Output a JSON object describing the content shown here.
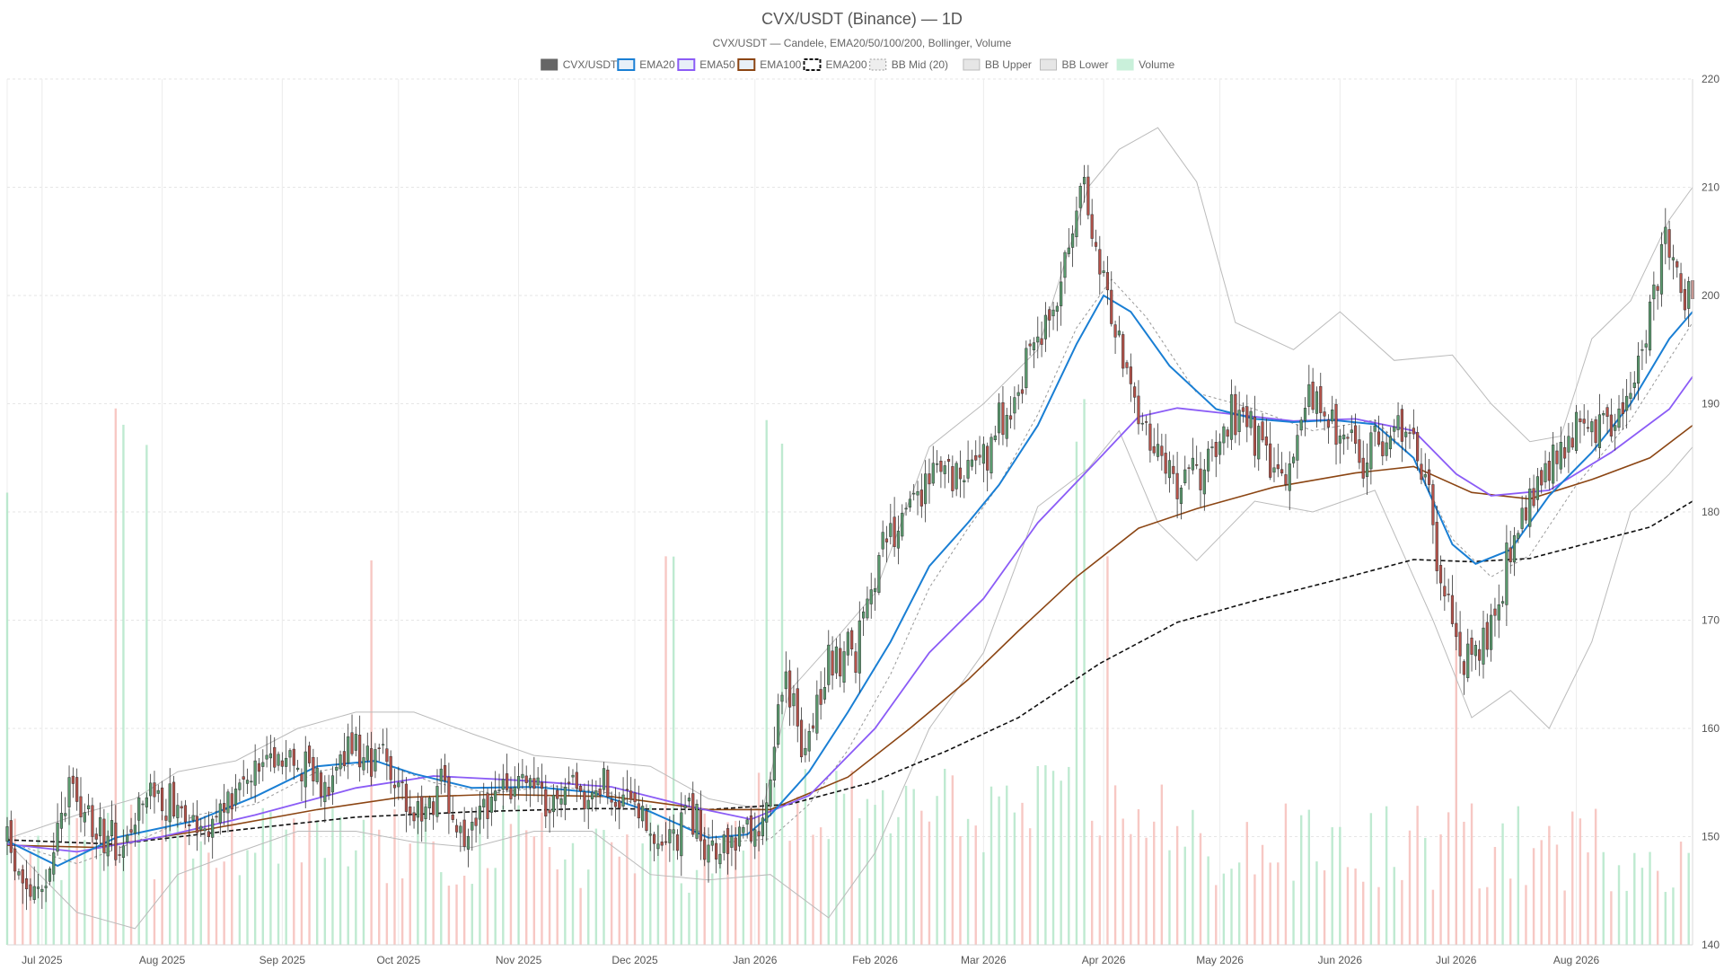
{
  "chart_data": {
    "type": "candlestick",
    "title": "CVX/USDT (Binance) — 1D",
    "subtitle": "CVX/USDT — Candele, EMA20/50/100/200, Bollinger, Volume",
    "ylim": [
      140,
      220
    ],
    "y_ticks": [
      140,
      150,
      160,
      170,
      180,
      190,
      200,
      210,
      220
    ],
    "grid": true,
    "legend_position": "top-center",
    "x_range": [
      "2025-06-22",
      "2026-08-31"
    ],
    "x_ticks": [
      {
        "date": "2025-07-01",
        "label": "Jul 2025"
      },
      {
        "date": "2025-08-01",
        "label": "Aug 2025"
      },
      {
        "date": "2025-09-01",
        "label": "Sep 2025"
      },
      {
        "date": "2025-10-01",
        "label": "Oct 2025"
      },
      {
        "date": "2025-11-01",
        "label": "Nov 2025"
      },
      {
        "date": "2025-12-01",
        "label": "Dec 2025"
      },
      {
        "date": "2026-01-01",
        "label": "Jan 2026"
      },
      {
        "date": "2026-02-01",
        "label": "Feb 2026"
      },
      {
        "date": "2026-03-01",
        "label": "Mar 2026"
      },
      {
        "date": "2026-04-01",
        "label": "Apr 2026"
      },
      {
        "date": "2026-05-01",
        "label": "May 2026"
      },
      {
        "date": "2026-06-01",
        "label": "Jun 2026"
      },
      {
        "date": "2026-07-01",
        "label": "Jul 2026"
      },
      {
        "date": "2026-08-01",
        "label": "Aug 2026"
      }
    ],
    "legend": [
      {
        "name": "CVX/USDT",
        "swatch": "solid",
        "color": "#666666"
      },
      {
        "name": "EMA20",
        "swatch": "box",
        "color": "#1a7fd4"
      },
      {
        "name": "EMA50",
        "swatch": "box",
        "color": "#8b5cf6"
      },
      {
        "name": "EMA100",
        "swatch": "box",
        "color": "#8b4513"
      },
      {
        "name": "EMA200",
        "swatch": "dashed",
        "color": "#111111"
      },
      {
        "name": "BB Mid (20)",
        "swatch": "dotted",
        "color": "#999999"
      },
      {
        "name": "BB Upper",
        "swatch": "gray",
        "color": "#bbbbbb"
      },
      {
        "name": "BB Lower",
        "swatch": "gray",
        "color": "#bbbbbb"
      },
      {
        "name": "Volume",
        "swatch": "mint",
        "color": "#8fd9b0"
      }
    ],
    "colors": {
      "up": "#5a9a6e",
      "down": "#b5524a",
      "wick": "#333333",
      "ema20": "#1a7fd4",
      "ema50": "#8b5cf6",
      "ema100": "#8b4513",
      "ema200": "#111111",
      "bb_mid": "#999999",
      "bb_band": "#bbbbbb",
      "volume_up": "#a9e3c2",
      "volume_down": "#f4b6b0"
    },
    "close_path": [
      [
        "2025-06-22",
        149.5
      ],
      [
        "2025-06-27",
        144.5
      ],
      [
        "2025-07-02",
        145.0
      ],
      [
        "2025-07-08",
        154.5
      ],
      [
        "2025-07-15",
        150.5
      ],
      [
        "2025-07-22",
        148.5
      ],
      [
        "2025-07-29",
        154.0
      ],
      [
        "2025-08-05",
        153.5
      ],
      [
        "2025-08-12",
        150.5
      ],
      [
        "2025-08-20",
        154.0
      ],
      [
        "2025-08-28",
        158.0
      ],
      [
        "2025-09-05",
        157.0
      ],
      [
        "2025-09-12",
        155.5
      ],
      [
        "2025-09-20",
        158.5
      ],
      [
        "2025-09-28",
        156.5
      ],
      [
        "2025-10-05",
        152.5
      ],
      [
        "2025-10-12",
        154.0
      ],
      [
        "2025-10-18",
        149.5
      ],
      [
        "2025-10-26",
        153.5
      ],
      [
        "2025-11-02",
        155.5
      ],
      [
        "2025-11-10",
        153.5
      ],
      [
        "2025-11-18",
        154.0
      ],
      [
        "2025-11-25",
        154.5
      ],
      [
        "2025-12-02",
        151.0
      ],
      [
        "2025-12-08",
        149.5
      ],
      [
        "2025-12-15",
        152.0
      ],
      [
        "2025-12-22",
        148.0
      ],
      [
        "2025-12-29",
        150.5
      ],
      [
        "2026-01-03",
        151.5
      ],
      [
        "2026-01-08",
        164.5
      ],
      [
        "2026-01-14",
        158.0
      ],
      [
        "2026-01-20",
        166.0
      ],
      [
        "2026-01-27",
        167.5
      ],
      [
        "2026-02-03",
        176.0
      ],
      [
        "2026-02-10",
        181.0
      ],
      [
        "2026-02-16",
        184.0
      ],
      [
        "2026-02-22",
        183.5
      ],
      [
        "2026-03-01",
        184.5
      ],
      [
        "2026-03-07",
        189.5
      ],
      [
        "2026-03-14",
        196.0
      ],
      [
        "2026-03-20",
        198.5
      ],
      [
        "2026-03-26",
        210.5
      ],
      [
        "2026-04-02",
        199.5
      ],
      [
        "2026-04-08",
        191.5
      ],
      [
        "2026-04-14",
        186.0
      ],
      [
        "2026-04-20",
        182.5
      ],
      [
        "2026-04-27",
        184.0
      ],
      [
        "2026-05-04",
        189.0
      ],
      [
        "2026-05-11",
        187.0
      ],
      [
        "2026-05-17",
        182.5
      ],
      [
        "2026-05-24",
        190.5
      ],
      [
        "2026-05-31",
        188.0
      ],
      [
        "2026-06-07",
        184.0
      ],
      [
        "2026-06-14",
        188.5
      ],
      [
        "2026-06-21",
        187.0
      ],
      [
        "2026-06-27",
        174.0
      ],
      [
        "2026-07-03",
        166.5
      ],
      [
        "2026-07-08",
        167.5
      ],
      [
        "2026-07-14",
        175.0
      ],
      [
        "2026-07-21",
        182.0
      ],
      [
        "2026-07-28",
        186.0
      ],
      [
        "2026-08-04",
        189.0
      ],
      [
        "2026-08-11",
        187.5
      ],
      [
        "2026-08-18",
        195.5
      ],
      [
        "2026-08-24",
        205.5
      ],
      [
        "2026-08-29",
        200.5
      ],
      [
        "2026-08-31",
        201.5
      ]
    ],
    "ema20": [
      [
        "2025-06-22",
        149.6
      ],
      [
        "2025-07-05",
        147.3
      ],
      [
        "2025-07-20",
        149.9
      ],
      [
        "2025-08-10",
        151.5
      ],
      [
        "2025-08-25",
        153.7
      ],
      [
        "2025-09-10",
        156.5
      ],
      [
        "2025-09-25",
        157.0
      ],
      [
        "2025-10-05",
        155.8
      ],
      [
        "2025-10-20",
        154.5
      ],
      [
        "2025-11-05",
        154.6
      ],
      [
        "2025-11-20",
        154.1
      ],
      [
        "2025-12-05",
        152.3
      ],
      [
        "2025-12-20",
        149.9
      ],
      [
        "2025-12-30",
        150.2
      ],
      [
        "2026-01-05",
        152.0
      ],
      [
        "2026-01-15",
        156.0
      ],
      [
        "2026-01-25",
        161.5
      ],
      [
        "2026-02-05",
        168.0
      ],
      [
        "2026-02-15",
        175.0
      ],
      [
        "2026-02-25",
        179.0
      ],
      [
        "2026-03-05",
        182.5
      ],
      [
        "2026-03-15",
        188.0
      ],
      [
        "2026-03-25",
        195.5
      ],
      [
        "2026-04-01",
        200.0
      ],
      [
        "2026-04-08",
        198.5
      ],
      [
        "2026-04-18",
        193.5
      ],
      [
        "2026-04-30",
        189.5
      ],
      [
        "2026-05-10",
        188.6
      ],
      [
        "2026-05-20",
        188.3
      ],
      [
        "2026-05-30",
        188.5
      ],
      [
        "2026-06-10",
        188.1
      ],
      [
        "2026-06-20",
        185.0
      ],
      [
        "2026-06-30",
        177.0
      ],
      [
        "2026-07-06",
        175.2
      ],
      [
        "2026-07-15",
        176.5
      ],
      [
        "2026-07-25",
        181.5
      ],
      [
        "2026-08-05",
        185.5
      ],
      [
        "2026-08-15",
        190.0
      ],
      [
        "2026-08-25",
        196.0
      ],
      [
        "2026-08-31",
        198.5
      ]
    ],
    "ema50": [
      [
        "2025-06-22",
        149.3
      ],
      [
        "2025-07-10",
        148.6
      ],
      [
        "2025-08-01",
        150.0
      ],
      [
        "2025-08-25",
        152.0
      ],
      [
        "2025-09-20",
        154.5
      ],
      [
        "2025-10-10",
        155.6
      ],
      [
        "2025-11-01",
        155.2
      ],
      [
        "2025-11-25",
        154.6
      ],
      [
        "2025-12-15",
        152.8
      ],
      [
        "2025-12-31",
        151.6
      ],
      [
        "2026-01-15",
        153.8
      ],
      [
        "2026-02-01",
        160.0
      ],
      [
        "2026-02-15",
        167.0
      ],
      [
        "2026-03-01",
        172.0
      ],
      [
        "2026-03-15",
        179.0
      ],
      [
        "2026-03-31",
        185.0
      ],
      [
        "2026-04-10",
        188.8
      ],
      [
        "2026-04-20",
        189.6
      ],
      [
        "2026-05-05",
        189.0
      ],
      [
        "2026-05-20",
        188.4
      ],
      [
        "2026-06-05",
        188.6
      ],
      [
        "2026-06-20",
        187.5
      ],
      [
        "2026-07-01",
        183.5
      ],
      [
        "2026-07-10",
        181.5
      ],
      [
        "2026-07-25",
        182.0
      ],
      [
        "2026-08-10",
        185.5
      ],
      [
        "2026-08-25",
        189.5
      ],
      [
        "2026-08-31",
        192.5
      ]
    ],
    "ema100": [
      [
        "2025-06-22",
        149.2
      ],
      [
        "2025-07-15",
        149.0
      ],
      [
        "2025-08-10",
        150.5
      ],
      [
        "2025-09-10",
        152.5
      ],
      [
        "2025-10-01",
        153.6
      ],
      [
        "2025-10-25",
        153.9
      ],
      [
        "2025-11-25",
        153.7
      ],
      [
        "2025-12-20",
        152.5
      ],
      [
        "2026-01-05",
        152.5
      ],
      [
        "2026-01-25",
        155.5
      ],
      [
        "2026-02-10",
        160.0
      ],
      [
        "2026-02-25",
        164.5
      ],
      [
        "2026-03-10",
        169.0
      ],
      [
        "2026-03-25",
        174.0
      ],
      [
        "2026-04-10",
        178.5
      ],
      [
        "2026-04-25",
        180.3
      ],
      [
        "2026-05-15",
        182.3
      ],
      [
        "2026-06-05",
        183.6
      ],
      [
        "2026-06-20",
        184.2
      ],
      [
        "2026-07-05",
        181.8
      ],
      [
        "2026-07-20",
        181.2
      ],
      [
        "2026-08-05",
        183.0
      ],
      [
        "2026-08-20",
        185.0
      ],
      [
        "2026-08-31",
        188.0
      ]
    ],
    "ema200": [
      [
        "2025-06-22",
        149.7
      ],
      [
        "2025-07-20",
        149.3
      ],
      [
        "2025-08-20",
        150.6
      ],
      [
        "2025-09-20",
        151.8
      ],
      [
        "2025-10-20",
        152.3
      ],
      [
        "2025-11-20",
        152.6
      ],
      [
        "2025-12-20",
        152.5
      ],
      [
        "2026-01-10",
        153.0
      ],
      [
        "2026-01-31",
        155.0
      ],
      [
        "2026-02-20",
        158.0
      ],
      [
        "2026-03-10",
        161.0
      ],
      [
        "2026-03-31",
        166.0
      ],
      [
        "2026-04-20",
        169.8
      ],
      [
        "2026-05-10",
        171.8
      ],
      [
        "2026-06-01",
        173.8
      ],
      [
        "2026-06-20",
        175.6
      ],
      [
        "2026-07-05",
        175.4
      ],
      [
        "2026-07-20",
        175.7
      ],
      [
        "2026-08-05",
        177.2
      ],
      [
        "2026-08-20",
        178.6
      ],
      [
        "2026-08-31",
        181.0
      ]
    ],
    "bb_mid": [
      [
        "2025-06-22",
        149.5
      ],
      [
        "2025-07-10",
        147.5
      ],
      [
        "2025-07-25",
        149.5
      ],
      [
        "2025-08-10",
        152.0
      ],
      [
        "2025-08-25",
        153.0
      ],
      [
        "2025-09-10",
        156.0
      ],
      [
        "2025-09-25",
        157.0
      ],
      [
        "2025-10-10",
        155.0
      ],
      [
        "2025-10-25",
        154.0
      ],
      [
        "2025-11-10",
        154.7
      ],
      [
        "2025-11-25",
        154.0
      ],
      [
        "2025-12-10",
        151.5
      ],
      [
        "2025-12-25",
        149.5
      ],
      [
        "2026-01-05",
        149.8
      ],
      [
        "2026-01-15",
        153.0
      ],
      [
        "2026-01-25",
        158.0
      ],
      [
        "2026-02-05",
        165.0
      ],
      [
        "2026-02-15",
        173.0
      ],
      [
        "2026-02-25",
        178.5
      ],
      [
        "2026-03-05",
        182.5
      ],
      [
        "2026-03-15",
        189.0
      ],
      [
        "2026-03-25",
        197.0
      ],
      [
        "2026-04-03",
        201.5
      ],
      [
        "2026-04-12",
        198.0
      ],
      [
        "2026-04-25",
        191.0
      ],
      [
        "2026-05-10",
        189.5
      ],
      [
        "2026-05-25",
        187.5
      ],
      [
        "2026-06-10",
        188.5
      ],
      [
        "2026-06-20",
        185.0
      ],
      [
        "2026-06-30",
        177.5
      ],
      [
        "2026-07-10",
        174.0
      ],
      [
        "2026-07-20",
        176.0
      ],
      [
        "2026-08-01",
        182.5
      ],
      [
        "2026-08-15",
        188.5
      ],
      [
        "2026-08-31",
        197.5
      ]
    ],
    "bb_upper": [
      [
        "2025-06-22",
        149.8
      ],
      [
        "2025-07-10",
        152.0
      ],
      [
        "2025-07-25",
        153.5
      ],
      [
        "2025-08-05",
        156.0
      ],
      [
        "2025-08-20",
        157.0
      ],
      [
        "2025-09-05",
        160.0
      ],
      [
        "2025-09-20",
        161.5
      ],
      [
        "2025-10-05",
        161.5
      ],
      [
        "2025-10-20",
        159.5
      ],
      [
        "2025-11-05",
        157.5
      ],
      [
        "2025-11-20",
        157.0
      ],
      [
        "2025-12-05",
        156.5
      ],
      [
        "2025-12-20",
        153.5
      ],
      [
        "2026-01-03",
        152.5
      ],
      [
        "2026-01-10",
        163.5
      ],
      [
        "2026-01-20",
        167.5
      ],
      [
        "2026-02-01",
        172.5
      ],
      [
        "2026-02-15",
        186.0
      ],
      [
        "2026-03-01",
        190.0
      ],
      [
        "2026-03-15",
        195.0
      ],
      [
        "2026-03-28",
        210.0
      ],
      [
        "2026-04-05",
        213.5
      ],
      [
        "2026-04-15",
        215.5
      ],
      [
        "2026-04-25",
        210.5
      ],
      [
        "2026-05-05",
        197.5
      ],
      [
        "2026-05-20",
        195.0
      ],
      [
        "2026-06-01",
        198.5
      ],
      [
        "2026-06-15",
        194.0
      ],
      [
        "2026-06-30",
        194.5
      ],
      [
        "2026-07-10",
        190.0
      ],
      [
        "2026-07-20",
        186.5
      ],
      [
        "2026-07-28",
        187.0
      ],
      [
        "2026-08-05",
        196.0
      ],
      [
        "2026-08-15",
        199.5
      ],
      [
        "2026-08-25",
        207.0
      ],
      [
        "2026-08-31",
        210.0
      ]
    ],
    "bb_lower": [
      [
        "2025-06-22",
        149.5
      ],
      [
        "2025-07-10",
        143.0
      ],
      [
        "2025-07-25",
        141.5
      ],
      [
        "2025-08-05",
        146.5
      ],
      [
        "2025-08-20",
        148.5
      ],
      [
        "2025-09-05",
        150.5
      ],
      [
        "2025-09-20",
        150.5
      ],
      [
        "2025-10-05",
        149.5
      ],
      [
        "2025-10-20",
        149.0
      ],
      [
        "2025-11-05",
        150.5
      ],
      [
        "2025-11-20",
        150.5
      ],
      [
        "2025-12-05",
        146.5
      ],
      [
        "2025-12-20",
        146.0
      ],
      [
        "2026-01-05",
        146.5
      ],
      [
        "2026-01-20",
        142.5
      ],
      [
        "2026-02-01",
        148.5
      ],
      [
        "2026-02-15",
        160.0
      ],
      [
        "2026-03-01",
        167.0
      ],
      [
        "2026-03-15",
        180.5
      ],
      [
        "2026-03-28",
        184.0
      ],
      [
        "2026-04-05",
        187.5
      ],
      [
        "2026-04-15",
        179.0
      ],
      [
        "2026-04-25",
        175.5
      ],
      [
        "2026-05-10",
        181.0
      ],
      [
        "2026-05-25",
        180.0
      ],
      [
        "2026-06-10",
        182.0
      ],
      [
        "2026-06-25",
        170.0
      ],
      [
        "2026-07-05",
        161.0
      ],
      [
        "2026-07-15",
        163.5
      ],
      [
        "2026-07-25",
        160.0
      ],
      [
        "2026-08-05",
        168.0
      ],
      [
        "2026-08-15",
        180.0
      ],
      [
        "2026-08-25",
        183.5
      ],
      [
        "2026-08-31",
        186.0
      ]
    ],
    "volume_hint": "relative bars along the bottom of the plot; up-day green, down-day red",
    "volume_spikes": [
      [
        "2025-06-22",
        0.78
      ],
      [
        "2025-07-21",
        0.92
      ],
      [
        "2025-07-28",
        0.85
      ],
      [
        "2025-09-24",
        0.65
      ],
      [
        "2025-12-10",
        0.66
      ],
      [
        "2026-01-04",
        0.85
      ],
      [
        "2026-01-08",
        0.77
      ],
      [
        "2026-03-26",
        0.8
      ],
      [
        "2026-04-02",
        0.55
      ],
      [
        "2026-07-01",
        0.5
      ]
    ]
  }
}
